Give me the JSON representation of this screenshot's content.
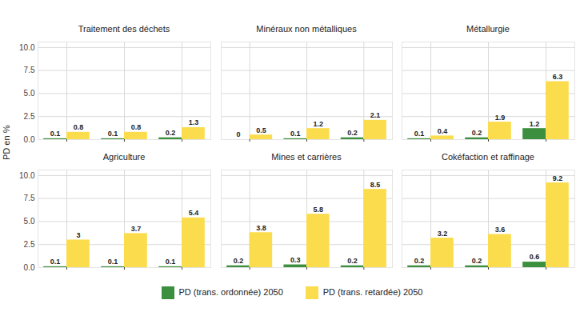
{
  "chart_data": {
    "type": "bar",
    "ylabel": "PD en %",
    "categories": [
      null,
      null,
      null
    ],
    "series": [
      {
        "name": "PD (trans. ordonnée) 2050",
        "color": "#3b8f3e"
      },
      {
        "name": "PD (trans. retardée) 2050",
        "color": "#fbdc4c"
      }
    ],
    "panels": [
      {
        "title": "Traitement des déchets",
        "values": [
          [
            0.1,
            0.1,
            0.2
          ],
          [
            0.8,
            0.8,
            1.3
          ]
        ]
      },
      {
        "title": "Minéraux non métalliques",
        "values": [
          [
            0,
            0.1,
            0.2
          ],
          [
            0.5,
            1.2,
            2.1
          ]
        ]
      },
      {
        "title": "Métallurgie",
        "values": [
          [
            0.1,
            0.2,
            1.2
          ],
          [
            0.4,
            1.9,
            6.3
          ]
        ]
      },
      {
        "title": "Agriculture",
        "values": [
          [
            0.1,
            0.1,
            0.1
          ],
          [
            3,
            3.7,
            5.4
          ]
        ]
      },
      {
        "title": "Mines et carrières",
        "values": [
          [
            0.2,
            0.3,
            0.2
          ],
          [
            3.8,
            5.8,
            8.5
          ]
        ]
      },
      {
        "title": "Cokéfaction et raffinage",
        "values": [
          [
            0.2,
            0.2,
            0.6
          ],
          [
            3.2,
            3.6,
            9.2
          ]
        ]
      }
    ],
    "ylim": [
      0,
      10.6
    ],
    "yticks": [
      {
        "value": 0,
        "label": "0.0"
      },
      {
        "value": 2.5,
        "label": "2.5"
      },
      {
        "value": 5,
        "label": "5.0"
      },
      {
        "value": 7.5,
        "label": "7.5"
      },
      {
        "value": 10,
        "label": "10.0"
      }
    ],
    "grid": true,
    "data_labels": true,
    "legend": "bottom"
  }
}
